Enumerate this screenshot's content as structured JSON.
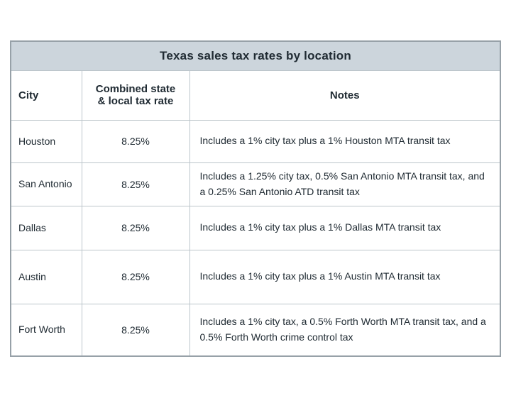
{
  "style": {
    "title_bg": "#ccd5dc",
    "cell_bg": "#ffffff",
    "text_color": "#202b33",
    "outer_border": "#97a1a8",
    "grid_color": "#bcc5cb"
  },
  "chart_data": {
    "type": "table",
    "title": "Texas sales tax rates by location",
    "columns": [
      "City",
      "Combined state & local tax rate",
      "Notes"
    ],
    "rows": [
      {
        "city": "Houston",
        "rate": "8.25%",
        "notes": "Includes a 1% city tax plus a 1% Houston MTA transit tax"
      },
      {
        "city": "San Antonio",
        "rate": "8.25%",
        "notes": "Includes a 1.25% city tax, 0.5% San Antonio MTA transit tax, and a 0.25% San Antonio ATD transit tax"
      },
      {
        "city": "Dallas",
        "rate": "8.25%",
        "notes": "Includes a 1% city tax plus a 1% Dallas MTA transit tax"
      },
      {
        "city": "Austin",
        "rate": "8.25%",
        "notes": "Includes a 1% city tax plus a 1% Austin MTA transit tax"
      },
      {
        "city": "Fort Worth",
        "rate": "8.25%",
        "notes": "Includes a 1% city tax, a 0.5% Forth Worth MTA transit tax, and a 0.5% Forth Worth crime control tax"
      }
    ]
  }
}
